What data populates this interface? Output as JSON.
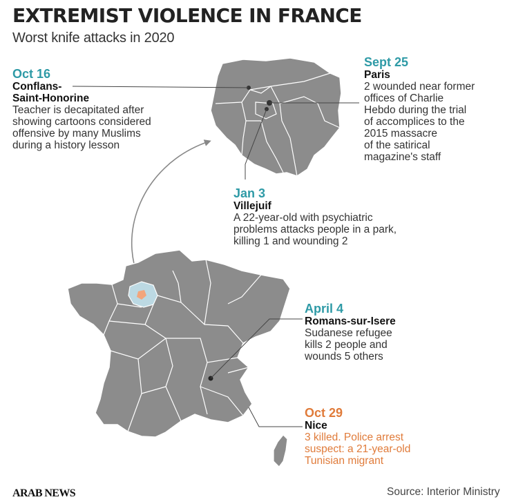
{
  "title": "EXTREMIST VIOLENCE IN FRANCE",
  "subtitle": "Worst knife attacks in 2020",
  "colors": {
    "map_fill": "#8c8c8c",
    "map_border": "#ffffff",
    "region_highlight": "#bcd9e3",
    "attack_marker": "#f3a57c",
    "teal_accent": "#2e9aa6",
    "orange_accent": "#e07b3a",
    "leader_line": "#333333"
  },
  "annotations": {
    "oct16": {
      "date": "Oct 16",
      "place": "Conflans-\nSaint-Honorine",
      "desc": "Teacher is decapitated after\nshowing cartoons considered\noffensive by many Muslims\nduring a history lesson"
    },
    "sept25": {
      "date": "Sept 25",
      "place": "Paris",
      "desc": "2 wounded near former\noffices of Charlie\nHebdo during the trial\nof accomplices to the\n2015 massacre\nof  the satirical\nmagazine's staff"
    },
    "jan3": {
      "date": "Jan 3",
      "place": "Villejuif",
      "desc": "A 22-year-old with psychiatric\nproblems attacks people in a park,\nkilling 1 and wounding 2"
    },
    "april4": {
      "date": "April 4",
      "place": "Romans-sur-Isere",
      "desc": "Sudanese refugee\nkills 2 people and\nwounds 5 others"
    },
    "oct29": {
      "date": "Oct 29",
      "place": "Nice",
      "desc": "3 killed. Police arrest\nsuspect: a 21-year-old\nTunisian migrant"
    }
  },
  "logo": "ARAB NEWS",
  "source": "Source: Interior Ministry"
}
